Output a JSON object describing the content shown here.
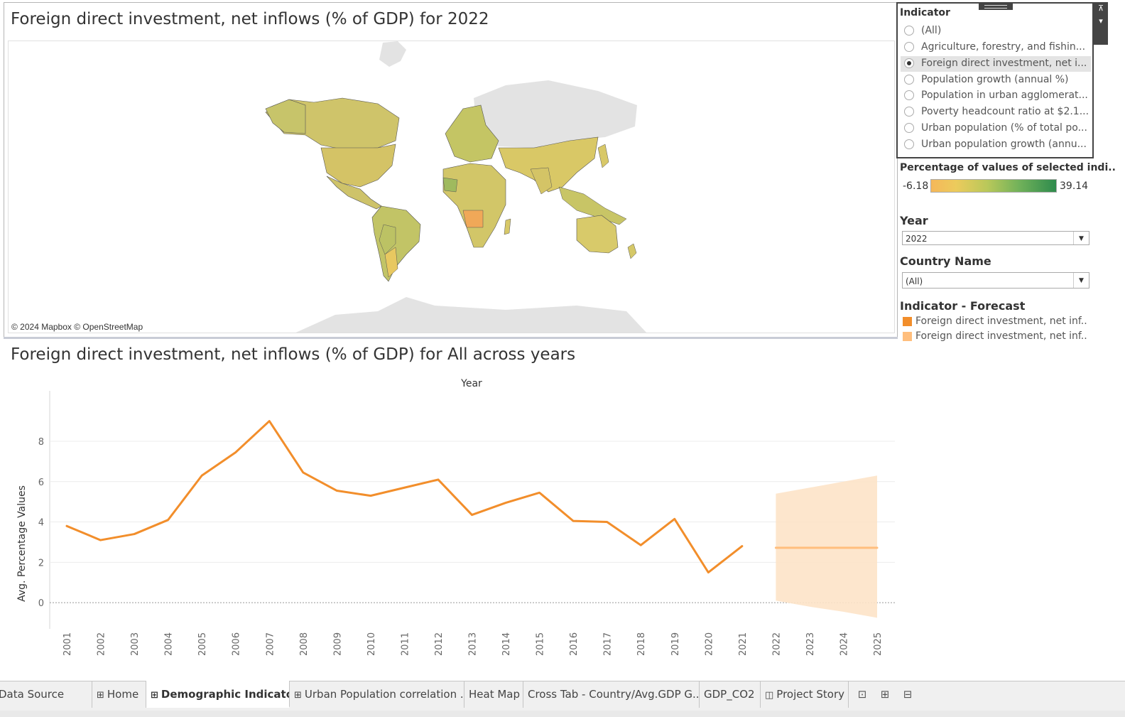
{
  "map": {
    "title": "Foreign direct investment, net inflows (% of GDP) for 2022",
    "credit": "© 2024 Mapbox © OpenStreetMap"
  },
  "chart": {
    "title": "Foreign direct investment, net inflows (% of GDP) for All across years"
  },
  "chart_data": {
    "type": "line",
    "title": "Foreign direct investment, net inflows (% of GDP) for All across years",
    "xlabel": "Year",
    "ylabel": "Avg. Percentage Values",
    "x": [
      "2001",
      "2002",
      "2003",
      "2004",
      "2005",
      "2006",
      "2007",
      "2008",
      "2009",
      "2010",
      "2011",
      "2012",
      "2013",
      "2014",
      "2015",
      "2016",
      "2017",
      "2018",
      "2019",
      "2020",
      "2021",
      "2022",
      "2023",
      "2024",
      "2025"
    ],
    "yticks": [
      0,
      2,
      4,
      6,
      8
    ],
    "ylim": [
      -1.3,
      10.5
    ],
    "series": [
      {
        "name": "Foreign direct investment, net inf..",
        "color": "#f28e2b",
        "x": [
          "2001",
          "2002",
          "2003",
          "2004",
          "2005",
          "2006",
          "2007",
          "2008",
          "2009",
          "2010",
          "2011",
          "2012",
          "2013",
          "2014",
          "2015",
          "2016",
          "2017",
          "2018",
          "2019",
          "2020",
          "2021"
        ],
        "values": [
          3.8,
          3.1,
          3.4,
          4.1,
          6.3,
          7.45,
          9.0,
          6.45,
          5.55,
          5.3,
          5.7,
          6.1,
          4.35,
          4.95,
          5.45,
          4.05,
          4.0,
          2.85,
          4.15,
          1.5,
          2.8
        ]
      },
      {
        "name": "Foreign direct investment, net inf..",
        "color": "#ffbe7d",
        "x": [
          "2022",
          "2023",
          "2024",
          "2025"
        ],
        "values": [
          2.72,
          2.72,
          2.72,
          2.72
        ],
        "upper": [
          5.4,
          5.7,
          6.0,
          6.3
        ],
        "lower": [
          0.1,
          -0.2,
          -0.45,
          -0.75
        ]
      }
    ],
    "grid": true,
    "legend_position": "right"
  },
  "sidebar": {
    "indicator_title": "Indicator",
    "indicator_options": [
      {
        "label": "(All)",
        "selected": false
      },
      {
        "label": "Agriculture, forestry, and fishin...",
        "selected": false
      },
      {
        "label": "Foreign direct investment, net i...",
        "selected": true
      },
      {
        "label": "Population growth (annual %)",
        "selected": false
      },
      {
        "label": "Population in urban agglomerat...",
        "selected": false
      },
      {
        "label": "Poverty headcount ratio at $2.1...",
        "selected": false
      },
      {
        "label": "Urban population (% of total po...",
        "selected": false
      },
      {
        "label": "Urban population growth (annu...",
        "selected": false
      }
    ],
    "color_legend_title": "Percentage of values of selected indi..",
    "color_min": "-6.18",
    "color_max": "39.14",
    "year_title": "Year",
    "year_value": "2022",
    "country_title": "Country Name",
    "country_value": "(All)",
    "forecast_title": "Indicator - Forecast",
    "forecast_items": [
      {
        "label": "Foreign direct investment, net inf..",
        "color": "#f28e2b"
      },
      {
        "label": "Foreign direct investment, net inf..",
        "color": "#ffbe7d"
      }
    ]
  },
  "tabs": [
    {
      "label": "Data Source",
      "icon": "database-icon",
      "active": false
    },
    {
      "label": "Home",
      "icon": "dashboard-icon",
      "active": false
    },
    {
      "label": "Demographic Indicators",
      "icon": "dashboard-icon",
      "active": true
    },
    {
      "label": "Urban Population correlation ...",
      "icon": "dashboard-icon",
      "active": false
    },
    {
      "label": "Heat Map",
      "icon": "",
      "active": false
    },
    {
      "label": "Cross Tab - Country/Avg.GDP G...",
      "icon": "",
      "active": false
    },
    {
      "label": "GDP_CO2",
      "icon": "",
      "active": false
    },
    {
      "label": "Project Story",
      "icon": "story-icon",
      "active": false
    }
  ],
  "colors": {
    "line": "#f28e2b",
    "forecast": "#ffbe7d",
    "band": "#fde3c8"
  }
}
